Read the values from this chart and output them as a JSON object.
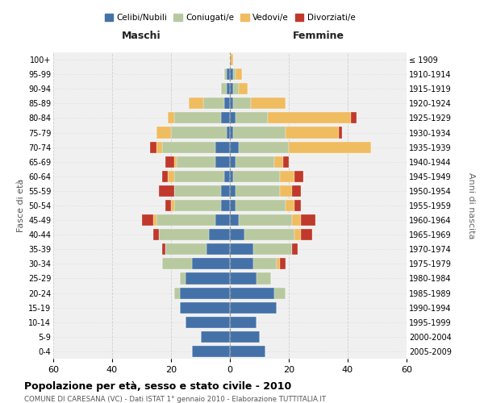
{
  "age_groups": [
    "0-4",
    "5-9",
    "10-14",
    "15-19",
    "20-24",
    "25-29",
    "30-34",
    "35-39",
    "40-44",
    "45-49",
    "50-54",
    "55-59",
    "60-64",
    "65-69",
    "70-74",
    "75-79",
    "80-84",
    "85-89",
    "90-94",
    "95-99",
    "100+"
  ],
  "birth_years": [
    "2005-2009",
    "2000-2004",
    "1995-1999",
    "1990-1994",
    "1985-1989",
    "1980-1984",
    "1975-1979",
    "1970-1974",
    "1965-1969",
    "1960-1964",
    "1955-1959",
    "1950-1954",
    "1945-1949",
    "1940-1944",
    "1935-1939",
    "1930-1934",
    "1925-1929",
    "1920-1924",
    "1915-1919",
    "1910-1914",
    "≤ 1909"
  ],
  "males": {
    "celibe": [
      13,
      10,
      15,
      17,
      17,
      15,
      13,
      8,
      7,
      5,
      3,
      3,
      2,
      5,
      5,
      1,
      3,
      2,
      1,
      1,
      0
    ],
    "coniugato": [
      0,
      0,
      0,
      0,
      2,
      2,
      10,
      14,
      17,
      20,
      16,
      16,
      17,
      13,
      18,
      19,
      16,
      7,
      2,
      1,
      0
    ],
    "vedovo": [
      0,
      0,
      0,
      0,
      0,
      0,
      0,
      0,
      0,
      1,
      1,
      0,
      2,
      1,
      2,
      5,
      2,
      5,
      0,
      0,
      0
    ],
    "divorziato": [
      0,
      0,
      0,
      0,
      0,
      0,
      0,
      1,
      2,
      4,
      2,
      5,
      2,
      3,
      2,
      0,
      0,
      0,
      0,
      0,
      0
    ]
  },
  "females": {
    "nubile": [
      12,
      10,
      9,
      16,
      15,
      9,
      8,
      8,
      5,
      3,
      2,
      2,
      1,
      2,
      3,
      1,
      2,
      1,
      1,
      1,
      0
    ],
    "coniugata": [
      0,
      0,
      0,
      0,
      4,
      5,
      8,
      13,
      17,
      18,
      17,
      15,
      16,
      13,
      17,
      18,
      11,
      6,
      2,
      1,
      0
    ],
    "vedova": [
      0,
      0,
      0,
      0,
      0,
      0,
      1,
      0,
      2,
      3,
      3,
      4,
      5,
      3,
      28,
      18,
      28,
      12,
      3,
      2,
      1
    ],
    "divorziata": [
      0,
      0,
      0,
      0,
      0,
      0,
      2,
      2,
      4,
      5,
      2,
      3,
      3,
      2,
      0,
      1,
      2,
      0,
      0,
      0,
      0
    ]
  },
  "color_celibe": "#4472a8",
  "color_coniugato": "#b8c9a0",
  "color_vedovo": "#f0bc60",
  "color_divorziato": "#c0392b",
  "xlim": 60,
  "title_main": "Popolazione per età, sesso e stato civile - 2010",
  "title_sub": "COMUNE DI CARESANA (VC) - Dati ISTAT 1° gennaio 2010 - Elaborazione TUTTITALIA.IT",
  "ylabel_left": "Fasce di età",
  "ylabel_right": "Anni di nascita",
  "legend_labels": [
    "Celibi/Nubili",
    "Coniugati/e",
    "Vedovi/e",
    "Divorziati/e"
  ],
  "maschi_label": "Maschi",
  "femmine_label": "Femmine"
}
